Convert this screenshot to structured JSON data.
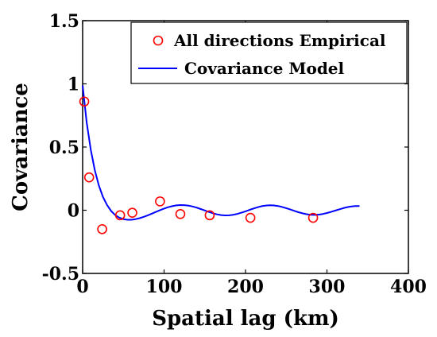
{
  "chart_data": {
    "type": "scatter",
    "xlabel": "Spatial lag (km)",
    "ylabel": "Covariance",
    "xlim": [
      0,
      400
    ],
    "ylim": [
      -0.5,
      1.5
    ],
    "xticks": [
      0,
      100,
      200,
      300,
      400
    ],
    "xtick_labels": [
      "0",
      "100",
      "200",
      "300",
      "400"
    ],
    "yticks": [
      -0.5,
      0,
      0.5,
      1,
      1.5
    ],
    "ytick_labels": [
      "-0.5",
      "0",
      "0.5",
      "1",
      "1.5"
    ],
    "grid": false,
    "legend_position": "top-right",
    "series": [
      {
        "name": "All directions Empirical",
        "kind": "markers",
        "color": "#ff0000",
        "marker": "circle",
        "x": [
          2,
          8,
          24,
          46,
          61,
          95,
          120,
          156,
          206,
          283
        ],
        "y": [
          0.86,
          0.26,
          -0.15,
          -0.04,
          -0.02,
          0.07,
          -0.03,
          -0.04,
          -0.06,
          -0.06
        ]
      },
      {
        "name": "Covariance Model",
        "kind": "line",
        "color": "#0000ff",
        "x": [
          0,
          5,
          10,
          15,
          20,
          25,
          30,
          35,
          40,
          45,
          50,
          55,
          60,
          65,
          70,
          75,
          80,
          85,
          90,
          95,
          100,
          105,
          110,
          115,
          120,
          125,
          130,
          135,
          140,
          145,
          150,
          155,
          160,
          165,
          170,
          175,
          180,
          185,
          190,
          195,
          200,
          205,
          210,
          215,
          220,
          225,
          230,
          235,
          240,
          245,
          250,
          255,
          260,
          265,
          270,
          275,
          280,
          285,
          290,
          295,
          300,
          305,
          310,
          315,
          320,
          325,
          330,
          335,
          340
        ],
        "y": [
          0.9876,
          0.6943,
          0.4765,
          0.3143,
          0.1938,
          0.1049,
          0.0401,
          -0.0062,
          -0.0381,
          -0.0588,
          -0.0706,
          -0.0756,
          -0.0752,
          -0.0706,
          -0.0627,
          -0.0523,
          -0.0401,
          -0.0268,
          -0.0131,
          0.0004,
          0.0129,
          0.0237,
          0.0323,
          0.0381,
          0.0408,
          0.0402,
          0.0364,
          0.0297,
          0.0205,
          0.0097,
          -0.002,
          -0.0136,
          -0.024,
          -0.0326,
          -0.0384,
          -0.041,
          -0.0401,
          -0.0359,
          -0.0288,
          -0.0194,
          -0.0086,
          0.0029,
          0.0141,
          0.0242,
          0.0322,
          0.0374,
          0.0393,
          0.0378,
          0.0331,
          0.0257,
          0.0163,
          0.0057,
          -0.0053,
          -0.0158,
          -0.0248,
          -0.0317,
          -0.0358,
          -0.0368,
          -0.0346,
          -0.0295,
          -0.0221,
          -0.013,
          -0.003,
          0.0071,
          0.0165,
          0.0243,
          0.0298,
          0.0327,
          0.0326
        ]
      }
    ]
  }
}
